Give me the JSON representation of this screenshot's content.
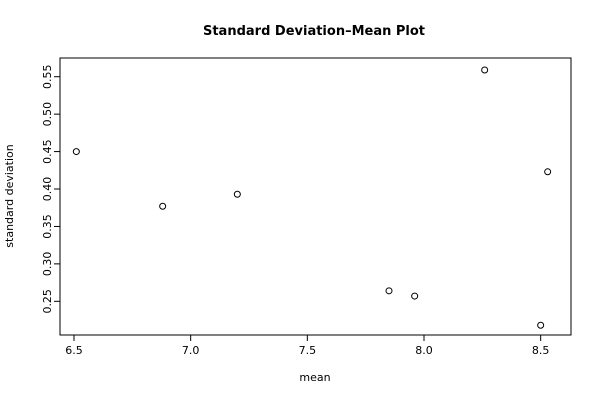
{
  "chart_data": {
    "type": "scatter",
    "title": "Standard Deviation–Mean Plot",
    "xlabel": "mean",
    "ylabel": "standard deviation",
    "xlim": [
      6.44,
      8.63
    ],
    "ylim": [
      0.205,
      0.575
    ],
    "xticks": [
      6.5,
      7.0,
      7.5,
      8.0,
      8.5
    ],
    "xtick_labels": [
      "6.5",
      "7.0",
      "7.5",
      "8.0",
      "8.5"
    ],
    "yticks": [
      0.25,
      0.3,
      0.35,
      0.4,
      0.45,
      0.5,
      0.55
    ],
    "ytick_labels": [
      "0.25",
      "0.30",
      "0.35",
      "0.40",
      "0.45",
      "0.50",
      "0.55"
    ],
    "grid": false,
    "marker": "open-circle",
    "points": [
      {
        "x": 6.51,
        "y": 0.45
      },
      {
        "x": 6.88,
        "y": 0.377
      },
      {
        "x": 7.2,
        "y": 0.393
      },
      {
        "x": 7.85,
        "y": 0.264
      },
      {
        "x": 7.96,
        "y": 0.257
      },
      {
        "x": 8.26,
        "y": 0.559
      },
      {
        "x": 8.5,
        "y": 0.218
      },
      {
        "x": 8.53,
        "y": 0.423
      }
    ]
  }
}
